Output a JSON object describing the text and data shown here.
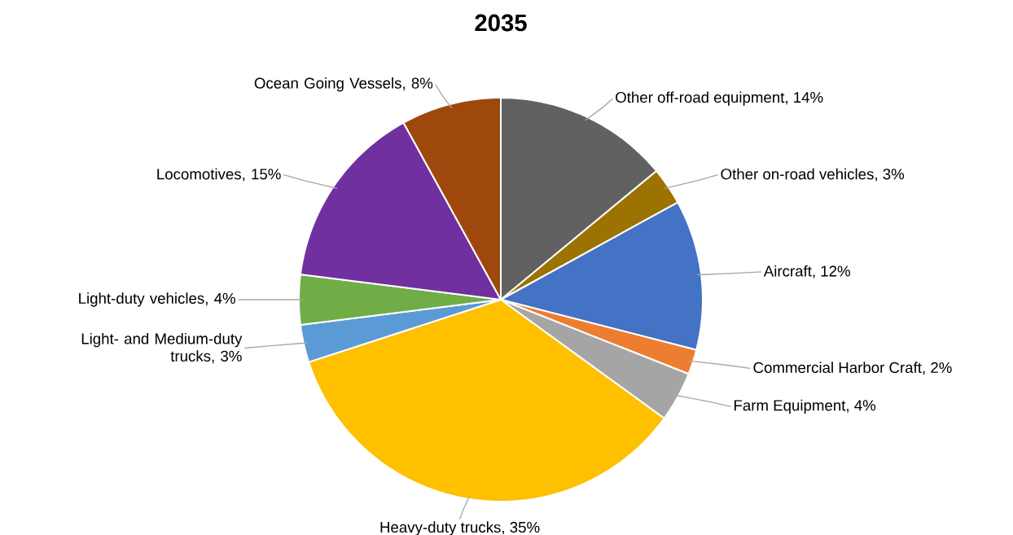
{
  "chart_data": {
    "type": "pie",
    "title": "2035",
    "categories": [
      "Other off-road equipment, 14%",
      "Other on-road vehicles, 3%",
      "Aircraft,  12%",
      "Commercial Harbor Craft, 2%",
      "Farm Equipment, 4%",
      "Heavy-duty trucks, 35%",
      "Light- and Medium-duty trucks, 3%",
      "Light-duty vehicles, 4%",
      "Locomotives, 15%",
      "Ocean Going Vessels, 8%"
    ],
    "values": [
      14,
      3,
      12,
      2,
      4,
      35,
      3,
      4,
      15,
      8
    ],
    "colors": [
      "#616161",
      "#9c7300",
      "#4472c4",
      "#ed7d31",
      "#a5a5a5",
      "#ffc000",
      "#5b9bd5",
      "#70ad47",
      "#7030a0",
      "#9e480e"
    ]
  }
}
